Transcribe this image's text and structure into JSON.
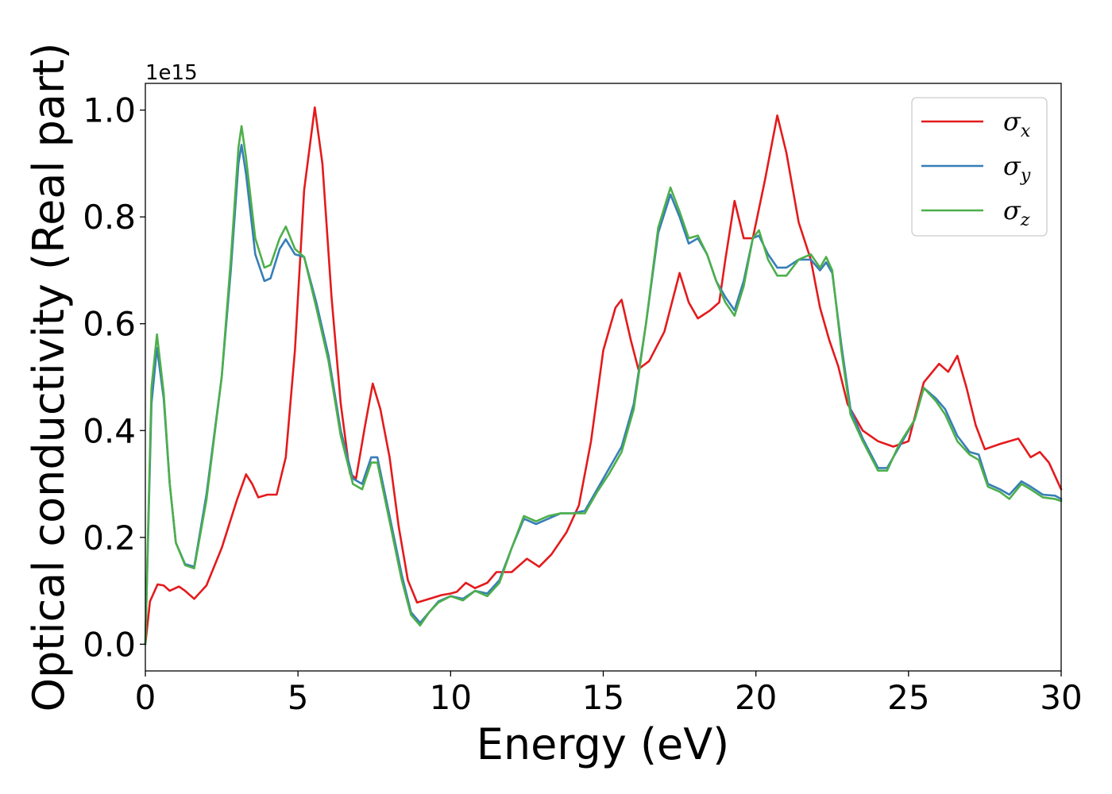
{
  "chart_data": {
    "type": "line",
    "xlabel": "Energy (eV)",
    "ylabel": "Optical conductivity (Real part)",
    "y_offset_text": "1e15",
    "xlim": [
      0,
      30
    ],
    "ylim": [
      -0.05,
      1.05
    ],
    "x_ticks": [
      0,
      5,
      10,
      15,
      20,
      25,
      30
    ],
    "x_tick_labels": [
      "0",
      "5",
      "10",
      "15",
      "20",
      "25",
      "30"
    ],
    "y_ticks": [
      0.0,
      0.2,
      0.4,
      0.6,
      0.8,
      1.0
    ],
    "y_tick_labels": [
      "0.0",
      "0.2",
      "0.4",
      "0.6",
      "0.8",
      "1.0"
    ],
    "grid": false,
    "legend_position": "top-right",
    "series": [
      {
        "name": "σx",
        "symbol": "σ",
        "subscript": "x",
        "color": "#e41a1c",
        "points": [
          [
            0,
            0
          ],
          [
            0.15,
            0.08
          ],
          [
            0.4,
            0.112
          ],
          [
            0.6,
            0.11
          ],
          [
            0.8,
            0.1
          ],
          [
            1.1,
            0.108
          ],
          [
            1.3,
            0.1
          ],
          [
            1.6,
            0.085
          ],
          [
            2.0,
            0.11
          ],
          [
            2.5,
            0.18
          ],
          [
            3.0,
            0.27
          ],
          [
            3.3,
            0.318
          ],
          [
            3.5,
            0.3
          ],
          [
            3.7,
            0.275
          ],
          [
            4.0,
            0.28
          ],
          [
            4.3,
            0.28
          ],
          [
            4.6,
            0.35
          ],
          [
            4.9,
            0.55
          ],
          [
            5.2,
            0.85
          ],
          [
            5.55,
            1.005
          ],
          [
            5.8,
            0.9
          ],
          [
            6.1,
            0.65
          ],
          [
            6.4,
            0.45
          ],
          [
            6.7,
            0.32
          ],
          [
            6.9,
            0.31
          ],
          [
            7.2,
            0.41
          ],
          [
            7.45,
            0.488
          ],
          [
            7.7,
            0.44
          ],
          [
            8.0,
            0.35
          ],
          [
            8.3,
            0.22
          ],
          [
            8.6,
            0.12
          ],
          [
            8.9,
            0.078
          ],
          [
            9.3,
            0.085
          ],
          [
            9.7,
            0.092
          ],
          [
            10.0,
            0.095
          ],
          [
            10.2,
            0.098
          ],
          [
            10.5,
            0.115
          ],
          [
            10.8,
            0.105
          ],
          [
            11.2,
            0.115
          ],
          [
            11.5,
            0.135
          ],
          [
            12.0,
            0.135
          ],
          [
            12.5,
            0.16
          ],
          [
            12.9,
            0.145
          ],
          [
            13.3,
            0.168
          ],
          [
            13.8,
            0.21
          ],
          [
            14.2,
            0.26
          ],
          [
            14.6,
            0.38
          ],
          [
            15.0,
            0.55
          ],
          [
            15.4,
            0.63
          ],
          [
            15.6,
            0.645
          ],
          [
            15.9,
            0.57
          ],
          [
            16.15,
            0.515
          ],
          [
            16.5,
            0.53
          ],
          [
            17.0,
            0.585
          ],
          [
            17.5,
            0.695
          ],
          [
            17.8,
            0.64
          ],
          [
            18.1,
            0.61
          ],
          [
            18.5,
            0.625
          ],
          [
            18.8,
            0.64
          ],
          [
            19.0,
            0.72
          ],
          [
            19.3,
            0.83
          ],
          [
            19.6,
            0.76
          ],
          [
            19.9,
            0.76
          ],
          [
            20.3,
            0.87
          ],
          [
            20.7,
            0.99
          ],
          [
            21.0,
            0.92
          ],
          [
            21.4,
            0.79
          ],
          [
            21.8,
            0.72
          ],
          [
            22.1,
            0.63
          ],
          [
            22.4,
            0.57
          ],
          [
            22.7,
            0.52
          ],
          [
            23.0,
            0.45
          ],
          [
            23.5,
            0.4
          ],
          [
            24.0,
            0.38
          ],
          [
            24.5,
            0.37
          ],
          [
            25.0,
            0.38
          ],
          [
            25.5,
            0.49
          ],
          [
            26.0,
            0.525
          ],
          [
            26.3,
            0.51
          ],
          [
            26.6,
            0.54
          ],
          [
            26.9,
            0.48
          ],
          [
            27.2,
            0.41
          ],
          [
            27.5,
            0.365
          ],
          [
            28.0,
            0.375
          ],
          [
            28.6,
            0.385
          ],
          [
            29.0,
            0.35
          ],
          [
            29.3,
            0.36
          ],
          [
            29.6,
            0.34
          ],
          [
            30.0,
            0.29
          ]
        ]
      },
      {
        "name": "σy",
        "symbol": "σ",
        "subscript": "y",
        "color": "#377eb8",
        "points": [
          [
            0,
            0
          ],
          [
            0.2,
            0.45
          ],
          [
            0.38,
            0.555
          ],
          [
            0.6,
            0.46
          ],
          [
            0.8,
            0.3
          ],
          [
            1.0,
            0.19
          ],
          [
            1.3,
            0.15
          ],
          [
            1.6,
            0.145
          ],
          [
            2.0,
            0.28
          ],
          [
            2.5,
            0.5
          ],
          [
            2.8,
            0.7
          ],
          [
            3.05,
            0.9
          ],
          [
            3.15,
            0.935
          ],
          [
            3.3,
            0.88
          ],
          [
            3.6,
            0.73
          ],
          [
            3.9,
            0.68
          ],
          [
            4.1,
            0.685
          ],
          [
            4.4,
            0.74
          ],
          [
            4.6,
            0.758
          ],
          [
            4.9,
            0.73
          ],
          [
            5.2,
            0.725
          ],
          [
            5.6,
            0.64
          ],
          [
            6.0,
            0.54
          ],
          [
            6.4,
            0.4
          ],
          [
            6.8,
            0.31
          ],
          [
            7.1,
            0.3
          ],
          [
            7.4,
            0.35
          ],
          [
            7.6,
            0.35
          ],
          [
            8.0,
            0.24
          ],
          [
            8.4,
            0.13
          ],
          [
            8.7,
            0.06
          ],
          [
            9.0,
            0.04
          ],
          [
            9.3,
            0.06
          ],
          [
            9.6,
            0.08
          ],
          [
            10.0,
            0.09
          ],
          [
            10.4,
            0.085
          ],
          [
            10.8,
            0.1
          ],
          [
            11.2,
            0.095
          ],
          [
            11.6,
            0.12
          ],
          [
            12.0,
            0.18
          ],
          [
            12.4,
            0.235
          ],
          [
            12.8,
            0.225
          ],
          [
            13.2,
            0.235
          ],
          [
            13.6,
            0.245
          ],
          [
            14.0,
            0.245
          ],
          [
            14.4,
            0.25
          ],
          [
            14.8,
            0.29
          ],
          [
            15.2,
            0.33
          ],
          [
            15.6,
            0.37
          ],
          [
            16.0,
            0.45
          ],
          [
            16.4,
            0.6
          ],
          [
            16.8,
            0.77
          ],
          [
            17.2,
            0.842
          ],
          [
            17.5,
            0.8
          ],
          [
            17.8,
            0.75
          ],
          [
            18.1,
            0.76
          ],
          [
            18.4,
            0.73
          ],
          [
            18.7,
            0.68
          ],
          [
            19.0,
            0.65
          ],
          [
            19.3,
            0.625
          ],
          [
            19.6,
            0.68
          ],
          [
            19.9,
            0.76
          ],
          [
            20.1,
            0.765
          ],
          [
            20.4,
            0.73
          ],
          [
            20.7,
            0.705
          ],
          [
            21.0,
            0.705
          ],
          [
            21.4,
            0.72
          ],
          [
            21.8,
            0.72
          ],
          [
            22.1,
            0.7
          ],
          [
            22.3,
            0.715
          ],
          [
            22.5,
            0.695
          ],
          [
            22.8,
            0.56
          ],
          [
            23.1,
            0.44
          ],
          [
            23.5,
            0.385
          ],
          [
            24.0,
            0.33
          ],
          [
            24.3,
            0.33
          ],
          [
            24.7,
            0.37
          ],
          [
            25.2,
            0.42
          ],
          [
            25.5,
            0.48
          ],
          [
            25.9,
            0.46
          ],
          [
            26.2,
            0.44
          ],
          [
            26.6,
            0.39
          ],
          [
            27.0,
            0.36
          ],
          [
            27.3,
            0.355
          ],
          [
            27.6,
            0.3
          ],
          [
            28.0,
            0.29
          ],
          [
            28.3,
            0.28
          ],
          [
            28.7,
            0.305
          ],
          [
            29.0,
            0.295
          ],
          [
            29.4,
            0.28
          ],
          [
            29.8,
            0.278
          ],
          [
            30.0,
            0.272
          ]
        ]
      },
      {
        "name": "σz",
        "symbol": "σ",
        "subscript": "z",
        "color": "#4daf4a",
        "points": [
          [
            0,
            0
          ],
          [
            0.2,
            0.48
          ],
          [
            0.38,
            0.58
          ],
          [
            0.6,
            0.47
          ],
          [
            0.8,
            0.3
          ],
          [
            1.0,
            0.19
          ],
          [
            1.3,
            0.148
          ],
          [
            1.6,
            0.142
          ],
          [
            2.0,
            0.27
          ],
          [
            2.5,
            0.5
          ],
          [
            2.8,
            0.72
          ],
          [
            3.05,
            0.93
          ],
          [
            3.15,
            0.97
          ],
          [
            3.3,
            0.91
          ],
          [
            3.6,
            0.76
          ],
          [
            3.9,
            0.705
          ],
          [
            4.1,
            0.71
          ],
          [
            4.4,
            0.76
          ],
          [
            4.6,
            0.782
          ],
          [
            4.9,
            0.74
          ],
          [
            5.2,
            0.725
          ],
          [
            5.6,
            0.63
          ],
          [
            6.0,
            0.53
          ],
          [
            6.4,
            0.39
          ],
          [
            6.8,
            0.3
          ],
          [
            7.1,
            0.29
          ],
          [
            7.4,
            0.34
          ],
          [
            7.6,
            0.34
          ],
          [
            8.0,
            0.23
          ],
          [
            8.4,
            0.12
          ],
          [
            8.7,
            0.055
          ],
          [
            9.0,
            0.035
          ],
          [
            9.3,
            0.06
          ],
          [
            9.6,
            0.078
          ],
          [
            10.0,
            0.09
          ],
          [
            10.4,
            0.082
          ],
          [
            10.8,
            0.1
          ],
          [
            11.2,
            0.09
          ],
          [
            11.6,
            0.115
          ],
          [
            12.0,
            0.18
          ],
          [
            12.4,
            0.24
          ],
          [
            12.8,
            0.23
          ],
          [
            13.2,
            0.24
          ],
          [
            13.6,
            0.245
          ],
          [
            14.0,
            0.245
          ],
          [
            14.4,
            0.245
          ],
          [
            14.8,
            0.285
          ],
          [
            15.2,
            0.32
          ],
          [
            15.6,
            0.36
          ],
          [
            16.0,
            0.44
          ],
          [
            16.4,
            0.6
          ],
          [
            16.8,
            0.78
          ],
          [
            17.2,
            0.855
          ],
          [
            17.5,
            0.81
          ],
          [
            17.8,
            0.76
          ],
          [
            18.1,
            0.765
          ],
          [
            18.4,
            0.73
          ],
          [
            18.7,
            0.68
          ],
          [
            19.0,
            0.64
          ],
          [
            19.3,
            0.615
          ],
          [
            19.6,
            0.67
          ],
          [
            19.9,
            0.76
          ],
          [
            20.1,
            0.775
          ],
          [
            20.4,
            0.72
          ],
          [
            20.7,
            0.69
          ],
          [
            21.0,
            0.69
          ],
          [
            21.4,
            0.72
          ],
          [
            21.8,
            0.73
          ],
          [
            22.1,
            0.705
          ],
          [
            22.3,
            0.725
          ],
          [
            22.5,
            0.7
          ],
          [
            22.8,
            0.55
          ],
          [
            23.1,
            0.43
          ],
          [
            23.5,
            0.38
          ],
          [
            24.0,
            0.325
          ],
          [
            24.3,
            0.325
          ],
          [
            24.7,
            0.375
          ],
          [
            25.2,
            0.42
          ],
          [
            25.5,
            0.48
          ],
          [
            25.9,
            0.455
          ],
          [
            26.2,
            0.43
          ],
          [
            26.6,
            0.38
          ],
          [
            27.0,
            0.355
          ],
          [
            27.3,
            0.345
          ],
          [
            27.6,
            0.295
          ],
          [
            28.0,
            0.285
          ],
          [
            28.3,
            0.272
          ],
          [
            28.7,
            0.3
          ],
          [
            29.0,
            0.29
          ],
          [
            29.4,
            0.275
          ],
          [
            29.8,
            0.272
          ],
          [
            30.0,
            0.268
          ]
        ]
      }
    ]
  }
}
